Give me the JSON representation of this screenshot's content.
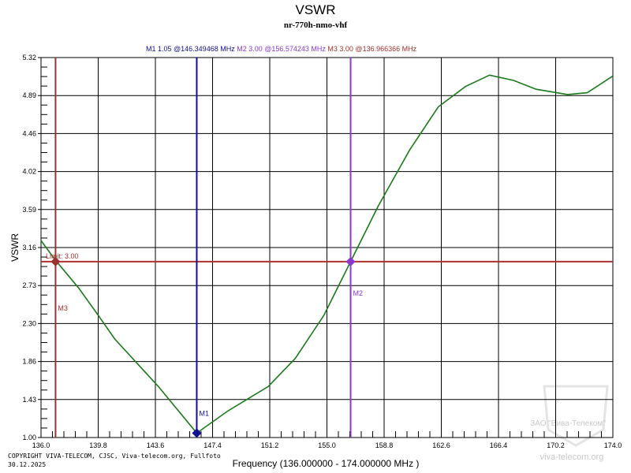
{
  "chart_data": {
    "type": "line",
    "title": "VSWR",
    "subtitle": "nr-770h-nmo-vhf",
    "xlabel": "Frequency (136.000000 - 174.000000 MHz )",
    "ylabel": "VSWR",
    "xlim": [
      136.0,
      174.0
    ],
    "ylim": [
      1.0,
      5.32
    ],
    "grid": true,
    "x_ticks": [
      "136.0",
      "139.8",
      "143.6",
      "147.4",
      "151.2",
      "155.0",
      "158.8",
      "162.6",
      "166.4",
      "170.2",
      "174.0"
    ],
    "y_ticks": [
      "5.32",
      "4.89",
      "4.46",
      "4.02",
      "3.59",
      "3.16",
      "2.73",
      "2.30",
      "1.86",
      "1.43",
      "1.00"
    ],
    "series": [
      {
        "color": "#1a7a1a",
        "x": [
          136.0,
          136.94,
          138.5,
          139.8,
          140.9,
          143.8,
          146.35,
          148.4,
          151.1,
          152.9,
          154.8,
          156.57,
          158.4,
          160.5,
          162.4,
          164.2,
          165.8,
          167.4,
          168.9,
          171.0,
          172.3,
          174.0
        ],
        "y": [
          3.24,
          3.02,
          2.7,
          2.39,
          2.12,
          1.58,
          1.05,
          1.3,
          1.58,
          1.9,
          2.39,
          3.0,
          3.63,
          4.27,
          4.76,
          4.99,
          5.12,
          5.06,
          4.96,
          4.9,
          4.92,
          5.11
        ]
      }
    ],
    "limit": {
      "label": "Limit: 3.00",
      "value": 3.0,
      "color": "#b03030"
    },
    "markers": [
      {
        "name": "M1",
        "vswr": 1.05,
        "freq": 146.349468,
        "readout": "M1   1.05 @146.349468 MHz",
        "color": "#101090"
      },
      {
        "name": "M2",
        "vswr": 3.0,
        "freq": 156.574243,
        "readout": "M2   3.00 @156.574243 MHz",
        "color": "#8a3ad0"
      },
      {
        "name": "M3",
        "vswr": 3.0,
        "freq": 136.966366,
        "readout": "M3   3.00 @136.966366 MHz",
        "color": "#a03030"
      }
    ]
  },
  "footer": {
    "copyright": "COPYRIGHT VIVA-TELECOM, CJSC, Viva-telecom.org, Fullfoto",
    "date": "30.12.2025"
  },
  "watermark": {
    "company": "ЗАО \"Вива-Телеком\"",
    "site": "viva-telecom.org"
  }
}
